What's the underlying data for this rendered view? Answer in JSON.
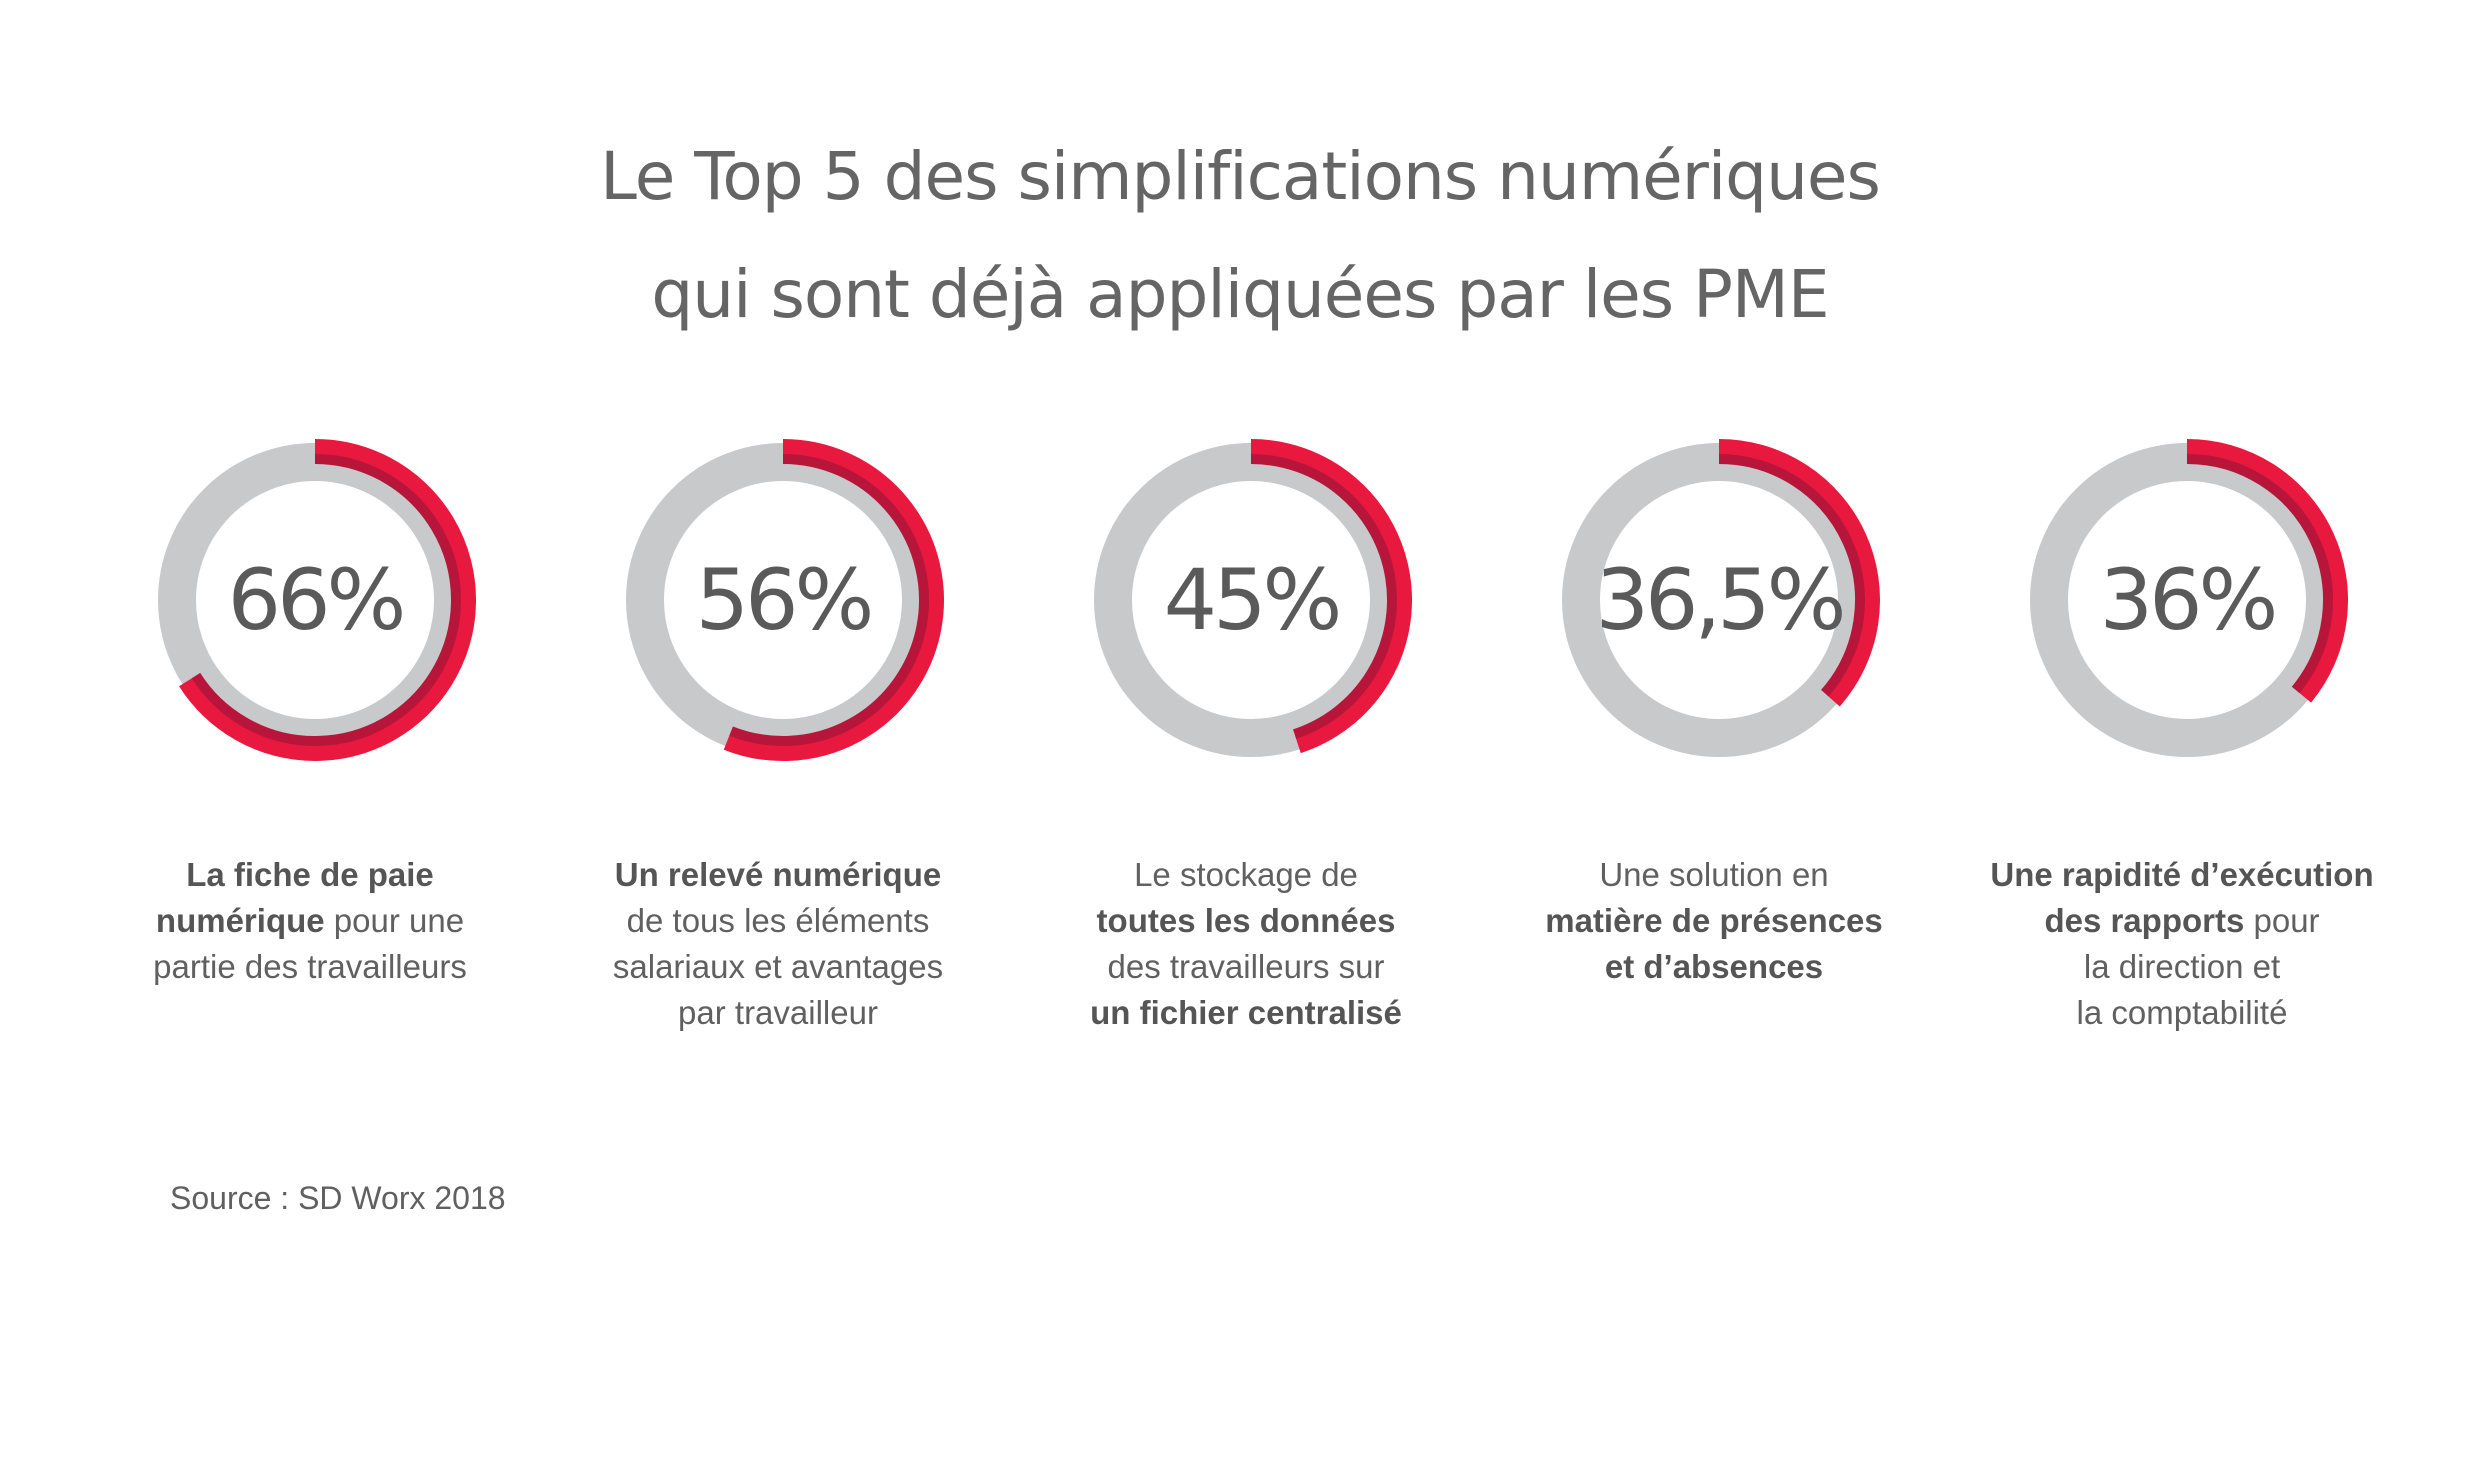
{
  "title": {
    "line1": "Le Top 5 des simplifications numériques",
    "line2": "qui sont déjà appliquées par les PME"
  },
  "colors": {
    "track": "#c8c9cb",
    "arc_outer": "#e8183f",
    "arc_inner": "#b8153a"
  },
  "chart_data": {
    "type": "donut",
    "title": "Le Top 5 des simplifications numériques qui sont déjà appliquées par les PME",
    "values": [
      66,
      56,
      45,
      36.5,
      36
    ],
    "unit": "%",
    "items": [
      {
        "value": 66,
        "label": "66%",
        "lines": [
          [
            {
              "t": "La fiche de paie",
              "b": true
            }
          ],
          [
            {
              "t": "numérique",
              "b": true
            },
            {
              "t": " pour une",
              "b": false
            }
          ],
          [
            {
              "t": "partie des travailleurs",
              "b": false
            }
          ]
        ]
      },
      {
        "value": 56,
        "label": "56%",
        "lines": [
          [
            {
              "t": "Un relevé numérique",
              "b": true
            }
          ],
          [
            {
              "t": "de tous les éléments",
              "b": false
            }
          ],
          [
            {
              "t": "salariaux et avantages",
              "b": false
            }
          ],
          [
            {
              "t": "par travailleur",
              "b": false
            }
          ]
        ]
      },
      {
        "value": 45,
        "label": "45%",
        "lines": [
          [
            {
              "t": "Le stockage de",
              "b": false
            }
          ],
          [
            {
              "t": "toutes les données",
              "b": true
            }
          ],
          [
            {
              "t": "des travailleurs sur",
              "b": false
            }
          ],
          [
            {
              "t": "un fichier centralisé",
              "b": true
            }
          ]
        ]
      },
      {
        "value": 36.5,
        "label": "36,5%",
        "lines": [
          [
            {
              "t": "Une solution en",
              "b": false
            }
          ],
          [
            {
              "t": "matière de présences",
              "b": true
            }
          ],
          [
            {
              "t": "et d’absences",
              "b": true
            }
          ]
        ]
      },
      {
        "value": 36,
        "label": "36%",
        "lines": [
          [
            {
              "t": "Une rapidité d’exécution",
              "b": true
            }
          ],
          [
            {
              "t": "des rapports",
              "b": true
            },
            {
              "t": " pour",
              "b": false
            }
          ],
          [
            {
              "t": "la direction et",
              "b": false
            }
          ],
          [
            {
              "t": "la comptabilité",
              "b": false
            }
          ]
        ]
      }
    ]
  },
  "source": "Source : SD Worx 2018"
}
